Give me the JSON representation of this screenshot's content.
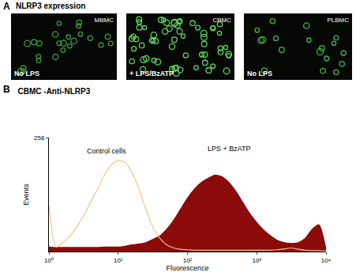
{
  "panel_a": {
    "label": "A",
    "title": "NLRP3 expression",
    "images": [
      {
        "name": "MBMC",
        "condition": "No LPS"
      },
      {
        "name": "CBMC",
        "condition": "+ LPS/BzATP"
      },
      {
        "name": "PLBMC",
        "condition": "No LPS"
      }
    ]
  },
  "panel_b_label": "B",
  "chart_data": {
    "type": "line",
    "title": "CBMC -Anti-NLRP3",
    "x_label": "Fluorescence",
    "y_label": "Events",
    "log": "x",
    "grid": false,
    "x": [
      1,
      1.26,
      1.58,
      2.0,
      2.51,
      3.16,
      3.98,
      5.01,
      6.31,
      7.94,
      10,
      12.6,
      15.8,
      20.0,
      25.1,
      31.6,
      39.8,
      50.1,
      63.1,
      79.4,
      100,
      126,
      158,
      200,
      251,
      316,
      398,
      501,
      631,
      794,
      1000,
      1259,
      1585,
      1995,
      2512,
      3162,
      3981,
      5012,
      6310,
      7943,
      10000
    ],
    "series": [
      {
        "type": "line",
        "color": "#f2c48d",
        "values": [
          105,
          10,
          20,
          35,
          55,
          80,
          110,
          140,
          172,
          195,
          205,
          200,
          178,
          140,
          95,
          55,
          30,
          15,
          8,
          5,
          4,
          3,
          3,
          3,
          3,
          3,
          3,
          3,
          3,
          3,
          3,
          3,
          3,
          4,
          6,
          8,
          5,
          3,
          2,
          2,
          1
        ]
      },
      {
        "type": "area",
        "color": "#8b0a0a",
        "values": [
          10,
          9,
          9,
          9,
          9,
          9,
          9,
          9,
          10,
          10,
          10,
          12,
          15,
          17,
          20,
          27,
          35,
          50,
          70,
          95,
          120,
          140,
          155,
          165,
          172,
          168,
          155,
          135,
          110,
          85,
          65,
          48,
          35,
          25,
          20,
          18,
          20,
          30,
          50,
          60,
          5
        ]
      }
    ],
    "annotations": [
      {
        "text": "Control cells",
        "x": 6.8,
        "y": 226
      },
      {
        "text": "LPS + BzATP",
        "x": 400,
        "y": 232
      }
    ],
    "xlim": [
      1,
      10000
    ],
    "xticks": [
      {
        "value": 1,
        "label": "10⁰"
      },
      {
        "value": 10,
        "label": "10¹"
      },
      {
        "value": 100,
        "label": "10²"
      },
      {
        "value": 1000,
        "label": "10³"
      },
      {
        "value": 10000,
        "label": "10⁴"
      }
    ],
    "ylim": [
      0,
      256
    ],
    "yticks": [
      256
    ]
  }
}
